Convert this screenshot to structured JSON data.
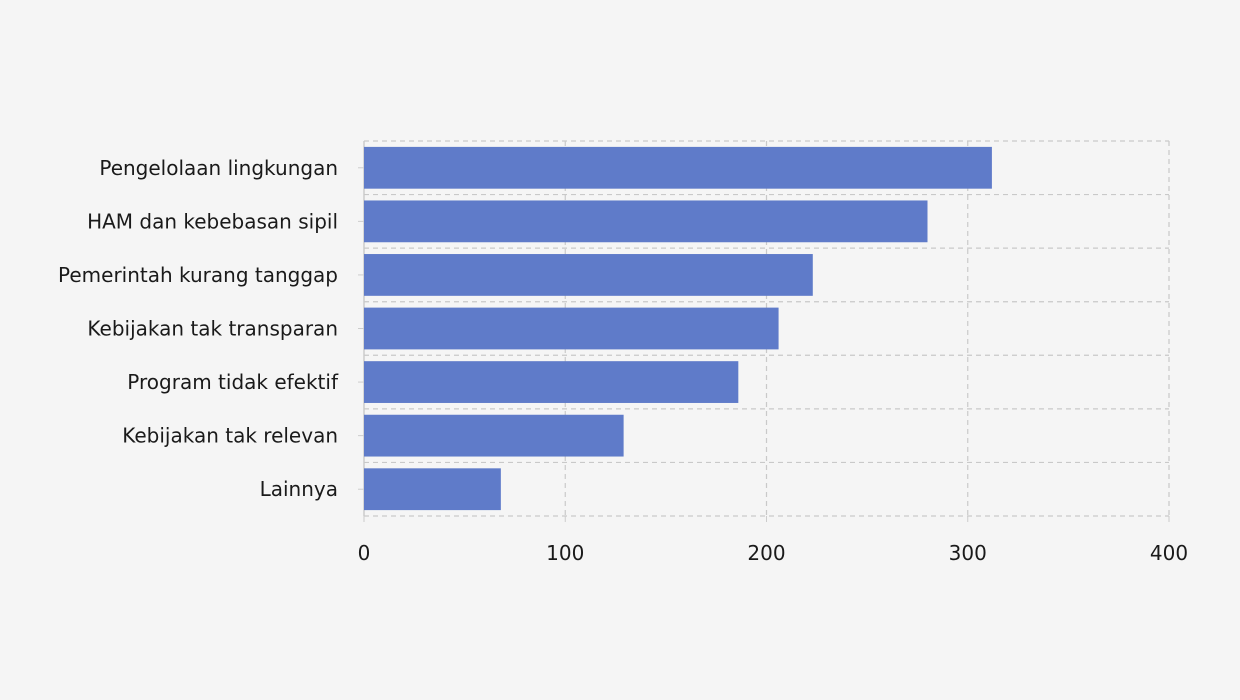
{
  "chart_data": {
    "type": "bar",
    "orientation": "horizontal",
    "categories": [
      "Pengelolaan lingkungan",
      "HAM dan kebebasan sipil",
      "Pemerintah kurang tanggap",
      "Kebijakan tak transparan",
      "Program tidak efektif",
      "Kebijakan tak relevan",
      "Lainnya"
    ],
    "values": [
      312,
      280,
      223,
      206,
      186,
      129,
      68
    ],
    "title": "",
    "xlabel": "",
    "ylabel": "",
    "xlim": [
      0,
      400
    ],
    "xticks": [
      "0",
      "100",
      "200",
      "300",
      "400"
    ],
    "grid": true,
    "legend": "none",
    "colors": {
      "bar": "#5f7bc9",
      "grid": "#c9c9c9",
      "axis": "#cccccc",
      "background": "#f5f5f5"
    }
  }
}
